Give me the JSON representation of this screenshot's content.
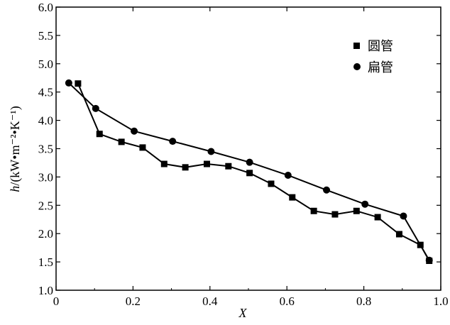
{
  "chart_data": {
    "type": "line",
    "xlabel": "X",
    "ylabel": "h/(kW•m⁻²•K⁻¹)",
    "ylabel_parts": {
      "var": "h",
      "unit": "/(kW•m⁻²•K⁻¹)"
    },
    "xlim": [
      0,
      1.0
    ],
    "ylim": [
      1.0,
      6.0
    ],
    "xticks": [
      "0",
      "0.2",
      "0.4",
      "0.6",
      "0.8",
      "1.0"
    ],
    "yticks": [
      "1.0",
      "1.5",
      "2.0",
      "2.5",
      "3.0",
      "3.5",
      "4.0",
      "4.5",
      "5.0",
      "5.5",
      "6.0"
    ],
    "grid": false,
    "legend_position": "top-right",
    "series": [
      {
        "name": "圆管",
        "marker": "square",
        "color": "#000000",
        "points": [
          [
            0.057,
            4.65
          ],
          [
            0.113,
            3.76
          ],
          [
            0.17,
            3.62
          ],
          [
            0.225,
            3.52
          ],
          [
            0.281,
            3.23
          ],
          [
            0.336,
            3.17
          ],
          [
            0.392,
            3.23
          ],
          [
            0.448,
            3.19
          ],
          [
            0.503,
            3.07
          ],
          [
            0.559,
            2.88
          ],
          [
            0.614,
            2.64
          ],
          [
            0.67,
            2.4
          ],
          [
            0.725,
            2.34
          ],
          [
            0.781,
            2.4
          ],
          [
            0.836,
            2.29
          ],
          [
            0.892,
            1.99
          ],
          [
            0.947,
            1.8
          ],
          [
            0.97,
            1.52
          ]
        ]
      },
      {
        "name": "扁管",
        "marker": "circle",
        "color": "#000000",
        "points": [
          [
            0.033,
            4.66
          ],
          [
            0.103,
            4.21
          ],
          [
            0.203,
            3.81
          ],
          [
            0.303,
            3.63
          ],
          [
            0.403,
            3.45
          ],
          [
            0.503,
            3.26
          ],
          [
            0.603,
            3.03
          ],
          [
            0.703,
            2.77
          ],
          [
            0.803,
            2.52
          ],
          [
            0.903,
            2.31
          ],
          [
            0.97,
            1.53
          ]
        ]
      }
    ]
  }
}
